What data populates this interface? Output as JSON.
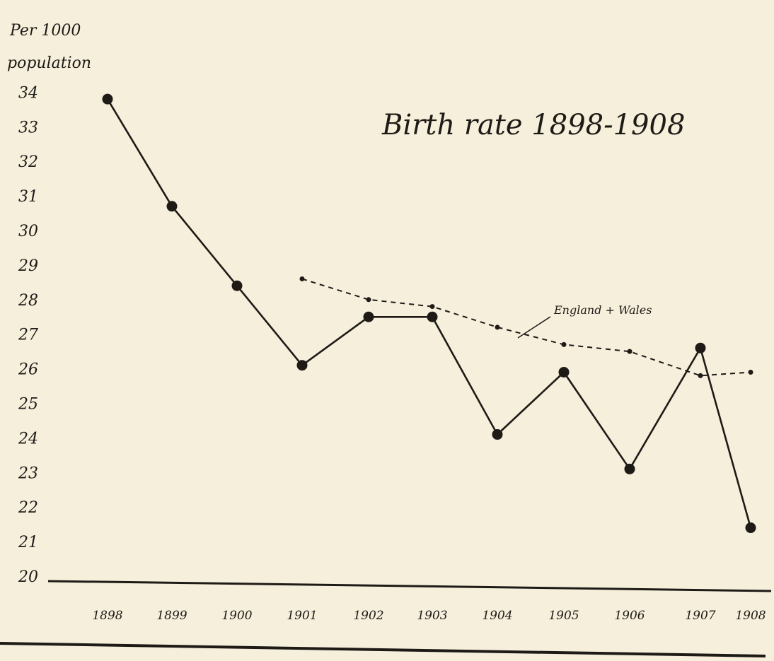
{
  "chart_data": {
    "type": "line",
    "title": "Birth rate 1898-1908",
    "ylabel_line1": "Per 1000",
    "ylabel_line2": "population",
    "xlabel": "",
    "ylim": [
      20,
      34
    ],
    "yticks": [
      "34",
      "33",
      "32",
      "31",
      "30",
      "29",
      "28",
      "27",
      "26",
      "25",
      "24",
      "23",
      "22",
      "21",
      "20"
    ],
    "categories": [
      "1898",
      "1899",
      "1900",
      "1901",
      "1902",
      "1903",
      "1904",
      "1905",
      "1906",
      "1907",
      "1908"
    ],
    "grid": false,
    "series": [
      {
        "style": "solid",
        "values": [
          33.8,
          30.7,
          28.4,
          26.1,
          27.5,
          27.5,
          24.1,
          25.9,
          23.1,
          26.6,
          21.4
        ]
      },
      {
        "name": "England + Wales",
        "style": "dashed",
        "values": [
          null,
          null,
          null,
          28.6,
          28.0,
          27.8,
          27.2,
          26.7,
          26.5,
          25.8,
          25.9
        ]
      }
    ],
    "colors": {
      "background": "#f6efdc",
      "ink": "#1e1b17"
    }
  }
}
